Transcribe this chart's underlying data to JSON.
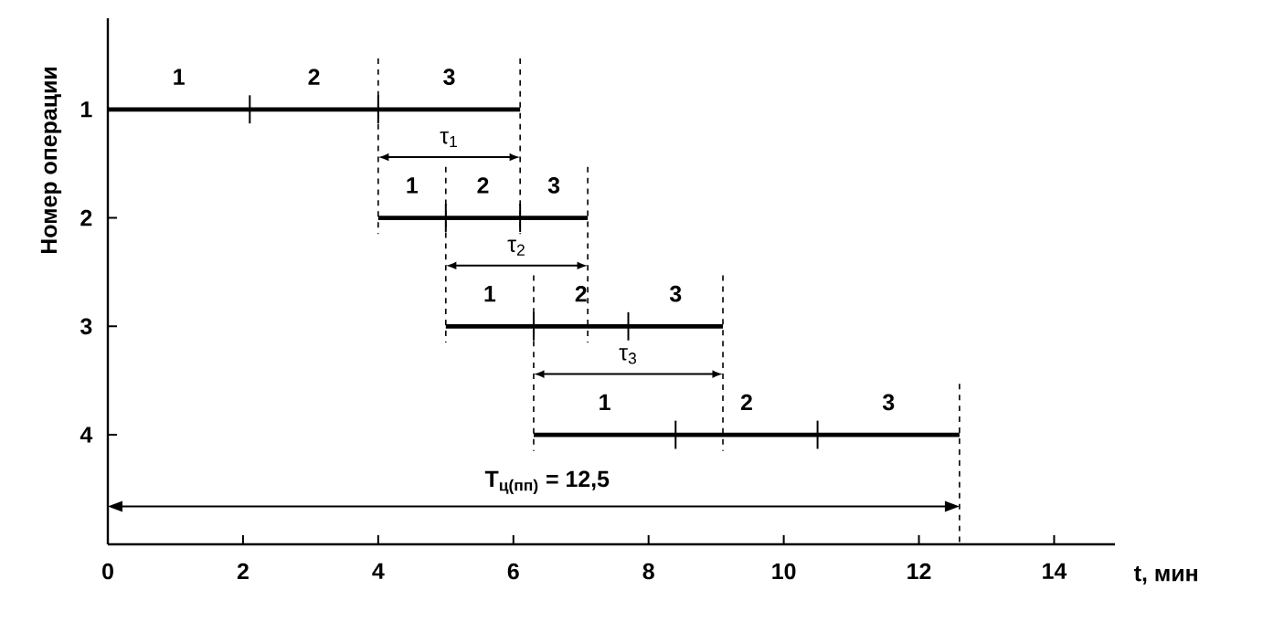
{
  "chart_data": {
    "type": "bar",
    "orientation": "horizontal",
    "categories": [
      "1",
      "2",
      "3",
      "4"
    ],
    "series": [
      {
        "name": "1",
        "color": "#000000",
        "base": [
          0,
          4,
          5,
          6.3
        ],
        "values": [
          2.1,
          1.0,
          1.3,
          2.1
        ]
      },
      {
        "name": "2",
        "color": "#000000",
        "base": [
          2.1,
          5,
          6.3,
          8.4
        ],
        "values": [
          1.9,
          1.1,
          1.4,
          2.1
        ]
      },
      {
        "name": "3",
        "color": "#000000",
        "base": [
          4,
          6.1,
          7.7,
          10.5
        ],
        "values": [
          2.1,
          1.0,
          1.4,
          2.1
        ]
      }
    ],
    "xlim": [
      0,
      14.9
    ],
    "xticks": [
      0,
      2,
      4,
      6,
      8,
      10,
      12,
      14
    ],
    "xlabel": "t, мин",
    "ylabel": "Номер операции",
    "annotations": [
      "τ$_{1}$",
      "τ$_{2}$",
      "τ$_{3}$",
      "T$_{ц(пп)}$ = 12,5"
    ]
  }
}
